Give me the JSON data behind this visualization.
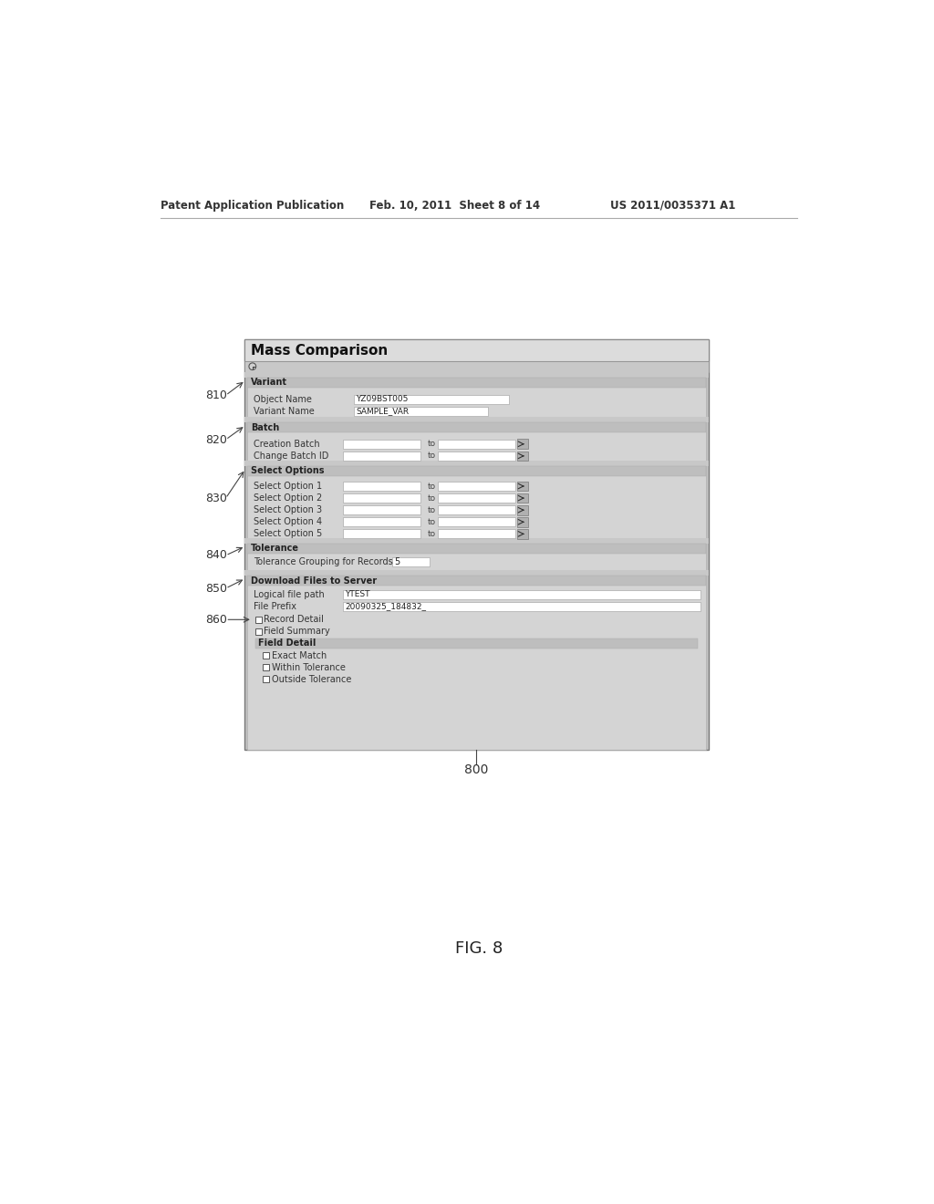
{
  "header_left": "Patent Application Publication",
  "header_mid": "Feb. 10, 2011  Sheet 8 of 14",
  "header_right": "US 2011/0035371 A1",
  "title": "Mass Comparison",
  "fig_label": "FIG. 8",
  "fig_number": "800",
  "bg_color": "#ffffff",
  "form_outer_bg": "#c0c0c0",
  "section_bg": "#d0d0d0",
  "section_hdr_bg": "#b8b8b8",
  "input_bg": "#ffffff",
  "title_bar_bg": "#e8e8e8",
  "clock_row_bg": "#c8c8c8",
  "gap_bg": "#c8c8c8",
  "btn_bg": "#b0b0b0"
}
